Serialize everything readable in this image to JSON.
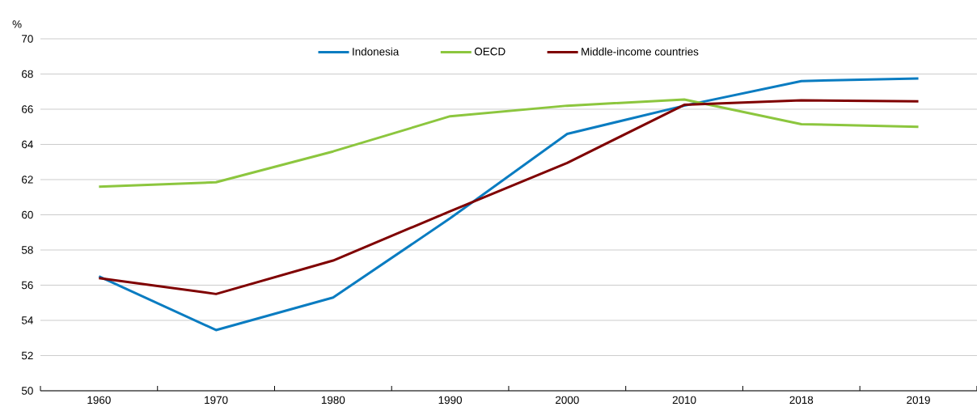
{
  "chart_data": {
    "type": "line",
    "ylabel": "%",
    "categories": [
      "1960",
      "1970",
      "1980",
      "1990",
      "2000",
      "2010",
      "2018",
      "2019"
    ],
    "series": [
      {
        "name": "Indonesia",
        "color": "#0a7cc1",
        "values": [
          56.5,
          53.45,
          55.3,
          59.8,
          64.6,
          66.2,
          67.6,
          67.75
        ]
      },
      {
        "name": "OECD",
        "color": "#8cc63e",
        "values": [
          61.6,
          61.85,
          63.6,
          65.6,
          66.2,
          66.55,
          65.15,
          65.0
        ]
      },
      {
        "name": "Middle-income countries",
        "color": "#7f0000",
        "values": [
          56.4,
          55.5,
          57.4,
          60.2,
          62.95,
          66.25,
          66.5,
          66.45
        ]
      }
    ],
    "ylim": [
      50,
      70
    ],
    "yticks": [
      50,
      52,
      54,
      56,
      58,
      60,
      62,
      64,
      66,
      68,
      70
    ],
    "grid": "y",
    "legend": "top",
    "line_style": "solid"
  }
}
